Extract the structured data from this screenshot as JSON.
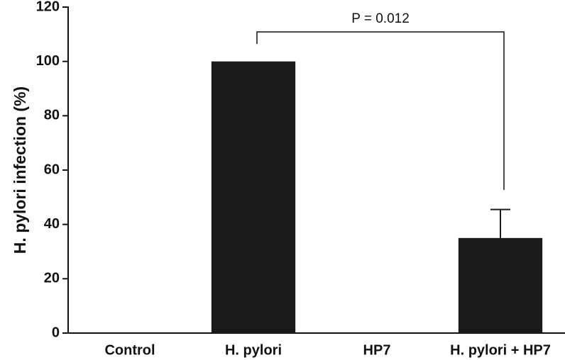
{
  "chart_data": {
    "type": "bar",
    "y_label": "H. pylori infection (%)",
    "categories": [
      "Control",
      "H. pylori",
      "HP7",
      "H. pylori + HP7"
    ],
    "values": [
      0,
      100,
      0,
      35
    ],
    "errors": [
      null,
      null,
      null,
      10.5
    ],
    "color": "#1a1a1a",
    "ylim": [
      0,
      120
    ],
    "yticks": [
      0,
      20,
      40,
      60,
      80,
      100,
      120
    ],
    "annotations": [
      "P = 0.012"
    ]
  }
}
